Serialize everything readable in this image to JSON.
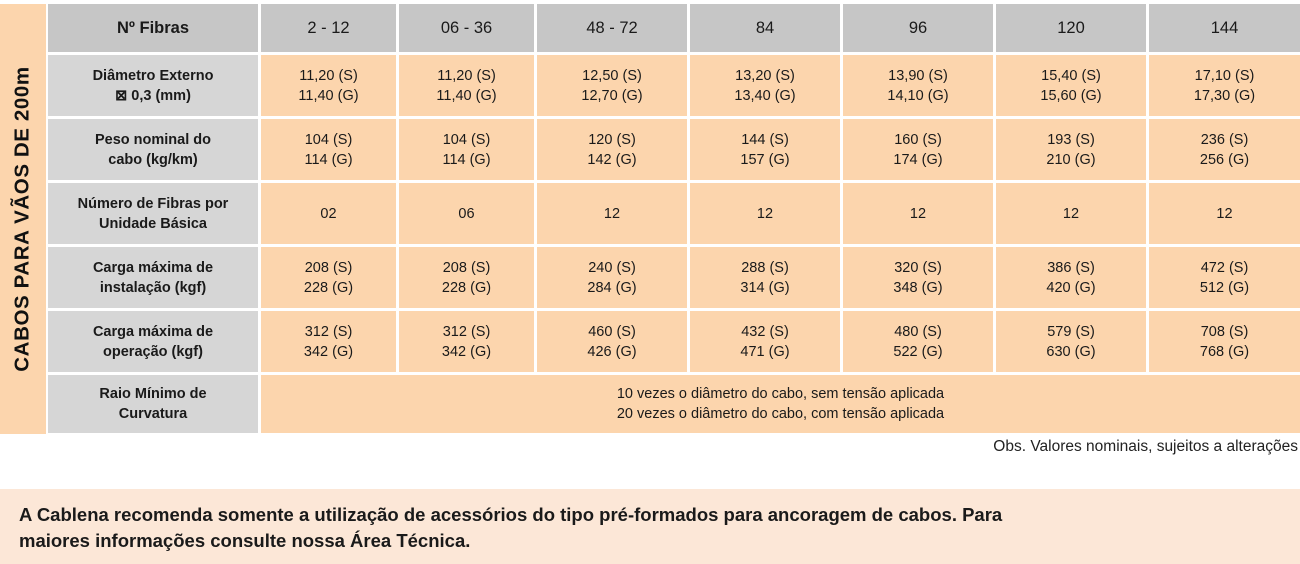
{
  "side_label": "CABOS PARA VÃOS DE 200m",
  "header": {
    "label": "Nº Fibras",
    "columns": [
      "2 - 12",
      "06 - 36",
      "48 - 72",
      "84",
      "96",
      "120",
      "144"
    ]
  },
  "rows": [
    {
      "label": [
        "Diâmetro Externo",
        "⊠ 0,3 (mm)"
      ],
      "cells": [
        [
          "11,20 (S)",
          "11,40 (G)"
        ],
        [
          "11,20 (S)",
          "11,40 (G)"
        ],
        [
          "12,50 (S)",
          "12,70 (G)"
        ],
        [
          "13,20 (S)",
          "13,40 (G)"
        ],
        [
          "13,90 (S)",
          "14,10 (G)"
        ],
        [
          "15,40 (S)",
          "15,60 (G)"
        ],
        [
          "17,10 (S)",
          "17,30 (G)"
        ]
      ]
    },
    {
      "label": [
        "Peso nominal do",
        "cabo (kg/km)"
      ],
      "cells": [
        [
          "104 (S)",
          "114 (G)"
        ],
        [
          "104 (S)",
          "114 (G)"
        ],
        [
          "120 (S)",
          "142 (G)"
        ],
        [
          "144 (S)",
          "157 (G)"
        ],
        [
          "160 (S)",
          "174 (G)"
        ],
        [
          "193 (S)",
          "210 (G)"
        ],
        [
          "236 (S)",
          "256 (G)"
        ]
      ]
    },
    {
      "label": [
        "Número de Fibras por",
        "Unidade Básica"
      ],
      "cells": [
        [
          "02"
        ],
        [
          "06"
        ],
        [
          "12"
        ],
        [
          "12"
        ],
        [
          "12"
        ],
        [
          "12"
        ],
        [
          "12"
        ]
      ]
    },
    {
      "label": [
        "Carga máxima de",
        "instalação (kgf)"
      ],
      "cells": [
        [
          "208 (S)",
          "228 (G)"
        ],
        [
          "208 (S)",
          "228 (G)"
        ],
        [
          "240 (S)",
          "284 (G)"
        ],
        [
          "288 (S)",
          "314 (G)"
        ],
        [
          "320 (S)",
          "348 (G)"
        ],
        [
          "386 (S)",
          "420 (G)"
        ],
        [
          "472 (S)",
          "512 (G)"
        ]
      ]
    },
    {
      "label": [
        "Carga máxima de",
        "operação (kgf)"
      ],
      "cells": [
        [
          "312 (S)",
          "342 (G)"
        ],
        [
          "312 (S)",
          "342 (G)"
        ],
        [
          "460 (S)",
          "426 (G)"
        ],
        [
          "432 (S)",
          "471 (G)"
        ],
        [
          "480 (S)",
          "522 (G)"
        ],
        [
          "579 (S)",
          "630 (G)"
        ],
        [
          "708 (S)",
          "768 (G)"
        ]
      ]
    }
  ],
  "last_row": {
    "label": [
      "Raio Mínimo de",
      "Curvatura"
    ],
    "lines": [
      "10 vezes o diâmetro do cabo, sem tensão aplicada",
      "20 vezes o diâmetro do cabo, com tensão aplicada"
    ]
  },
  "obs": "Obs. Valores nominais, sujeitos a alterações",
  "notice": [
    "A Cablena recomenda somente a utilização de acessórios do tipo pré-formados para ancoragem de cabos. Para",
    "maiores informações consulte nossa Área Técnica."
  ]
}
